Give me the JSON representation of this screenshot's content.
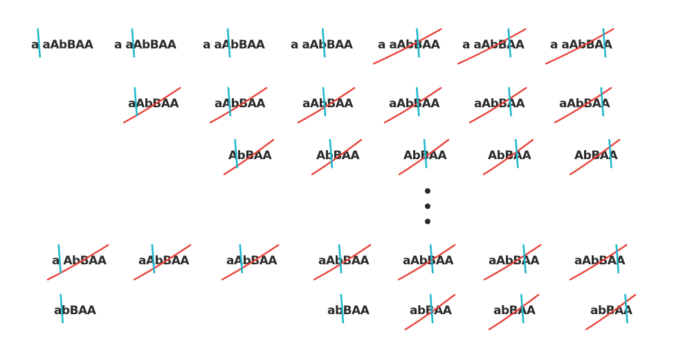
{
  "colors": {
    "ink": "#2a2a2a",
    "cursor": "#1fb6cc",
    "strike": "#e8443a",
    "background": "#ffffff"
  },
  "rows": [
    {
      "id": "row-1",
      "cells": [
        {
          "text": "a aAbBAA",
          "cursor_after": 1,
          "struck": false
        },
        {
          "text": "a aAbBAA",
          "cursor_after": 3,
          "struck": false
        },
        {
          "text": "a aAbBAA",
          "cursor_after": 4,
          "struck": false
        },
        {
          "text": "a aAbBAA",
          "cursor_after": 5,
          "struck": false
        },
        {
          "text": "a aAbBAA",
          "cursor_after": 6,
          "struck": true
        },
        {
          "text": "a aAbBAA",
          "cursor_after": 7,
          "struck": true
        },
        {
          "text": "a aAbBAA",
          "cursor_after": 8,
          "struck": true
        }
      ]
    },
    {
      "id": "row-2",
      "cells": [
        {
          "text": "aAbBAA",
          "cursor_after": 1,
          "struck": true
        },
        {
          "text": "aAbBAA",
          "cursor_after": 2,
          "struck": true
        },
        {
          "text": "aAbBAA",
          "cursor_after": 3,
          "struck": true
        },
        {
          "text": "aAbBAA",
          "cursor_after": 4,
          "struck": true
        },
        {
          "text": "aAbBAA",
          "cursor_after": 5,
          "struck": true
        },
        {
          "text": "aAbBAA",
          "cursor_after": 6,
          "struck": true
        }
      ]
    },
    {
      "id": "row-3",
      "cells": [
        {
          "text": "AbBAA",
          "cursor_after": 1,
          "struck": true
        },
        {
          "text": "AbBAA",
          "cursor_after": 2,
          "struck": true
        },
        {
          "text": "AbBAA",
          "cursor_after": 3,
          "struck": true
        },
        {
          "text": "AbBAA",
          "cursor_after": 4,
          "struck": true
        },
        {
          "text": "AbBAA",
          "cursor_after": 5,
          "struck": true
        }
      ]
    },
    {
      "id": "row-ellipsis",
      "ellipsis": true,
      "cells": []
    },
    {
      "id": "row-4",
      "cells": [
        {
          "text": "a AbBAA",
          "cursor_after": 1,
          "struck": true
        },
        {
          "text": "aAbBAA",
          "cursor_after": 2,
          "struck": true
        },
        {
          "text": "aAbBAA",
          "cursor_after": 2,
          "struck": true
        },
        {
          "text": "aAbBAA",
          "cursor_after": 3,
          "struck": true
        },
        {
          "text": "aAbBAA",
          "cursor_after": 4,
          "struck": true
        },
        {
          "text": "aAbBAA",
          "cursor_after": 5,
          "struck": true
        },
        {
          "text": "aAbBAA",
          "cursor_after": 6,
          "struck": true
        }
      ]
    },
    {
      "id": "row-5",
      "cells": [
        {
          "text": "abBAA",
          "cursor_after": 1,
          "struck": false
        },
        {
          "text": "abBAA",
          "cursor_after": 2,
          "struck": false
        },
        {
          "text": "abBAA",
          "cursor_after": 3,
          "struck": true
        },
        {
          "text": "abBAA",
          "cursor_after": 4,
          "struck": true
        },
        {
          "text": "abBAA",
          "cursor_after": 5,
          "struck": true
        }
      ]
    }
  ]
}
